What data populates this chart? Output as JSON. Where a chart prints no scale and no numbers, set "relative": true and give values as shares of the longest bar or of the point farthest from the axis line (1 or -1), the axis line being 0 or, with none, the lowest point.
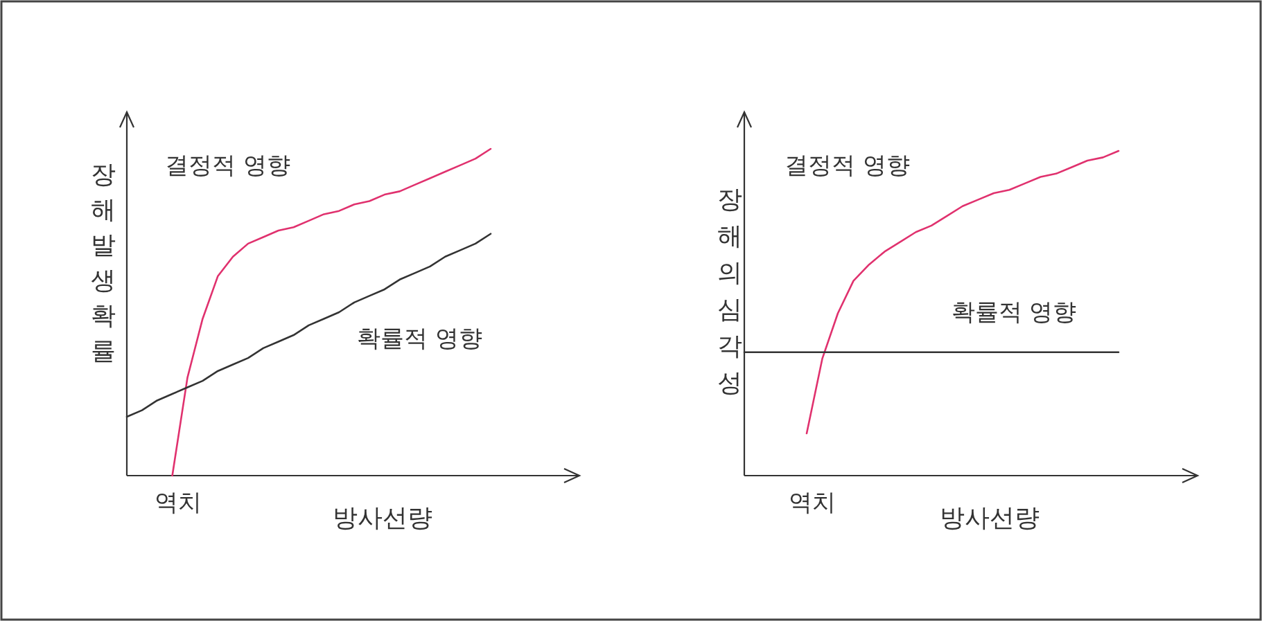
{
  "chart_data": [
    {
      "type": "line",
      "relative": true,
      "xlabel": "방사선량",
      "ylabel": "장해발생확률",
      "annotations": [
        "역치"
      ],
      "categories": [
        null,
        null,
        null,
        null,
        null,
        null,
        null,
        null,
        null,
        null,
        null,
        null,
        null,
        null,
        null,
        null,
        null,
        null,
        null,
        null,
        null,
        null,
        null,
        null,
        null
      ],
      "series": [
        {
          "name": "결정적 영향",
          "color": "#e0316e",
          "values": [
            null,
            null,
            null,
            0,
            0.3,
            0.48,
            0.61,
            0.67,
            0.71,
            0.73,
            0.75,
            0.76,
            0.78,
            0.8,
            0.81,
            0.83,
            0.84,
            0.86,
            0.87,
            0.89,
            0.91,
            0.93,
            0.95,
            0.97,
            1.0
          ]
        },
        {
          "name": "확률적 영향",
          "color": "#333333",
          "values": [
            0.18,
            0.2,
            0.23,
            0.25,
            0.27,
            0.29,
            0.32,
            0.34,
            0.36,
            0.39,
            0.41,
            0.43,
            0.46,
            0.48,
            0.5,
            0.53,
            0.55,
            0.57,
            0.6,
            0.62,
            0.64,
            0.67,
            0.69,
            0.71,
            0.74
          ]
        }
      ]
    },
    {
      "type": "line",
      "relative": true,
      "xlabel": "방사선량",
      "ylabel": "장해의심각성",
      "annotations": [
        "역치"
      ],
      "categories": [
        null,
        null,
        null,
        null,
        null,
        null,
        null,
        null,
        null,
        null,
        null,
        null,
        null,
        null,
        null,
        null,
        null,
        null,
        null,
        null,
        null,
        null,
        null,
        null,
        null
      ],
      "series": [
        {
          "name": "결정적 영향",
          "color": "#e0316e",
          "values": [
            null,
            null,
            null,
            null,
            0.13,
            0.36,
            0.5,
            0.6,
            0.65,
            0.69,
            0.72,
            0.75,
            0.77,
            0.8,
            0.83,
            0.85,
            0.87,
            0.88,
            0.9,
            0.92,
            0.93,
            0.95,
            0.97,
            0.98,
            1.0
          ]
        },
        {
          "name": "확률적 영향",
          "color": "#333333",
          "values": [
            0.38,
            0.38,
            0.38,
            0.38,
            0.38,
            0.38,
            0.38,
            0.38,
            0.38,
            0.38,
            0.38,
            0.38,
            0.38,
            0.38,
            0.38,
            0.38,
            0.38,
            0.38,
            0.38,
            0.38,
            0.38,
            0.38,
            0.38,
            0.38,
            0.38
          ]
        }
      ]
    }
  ]
}
